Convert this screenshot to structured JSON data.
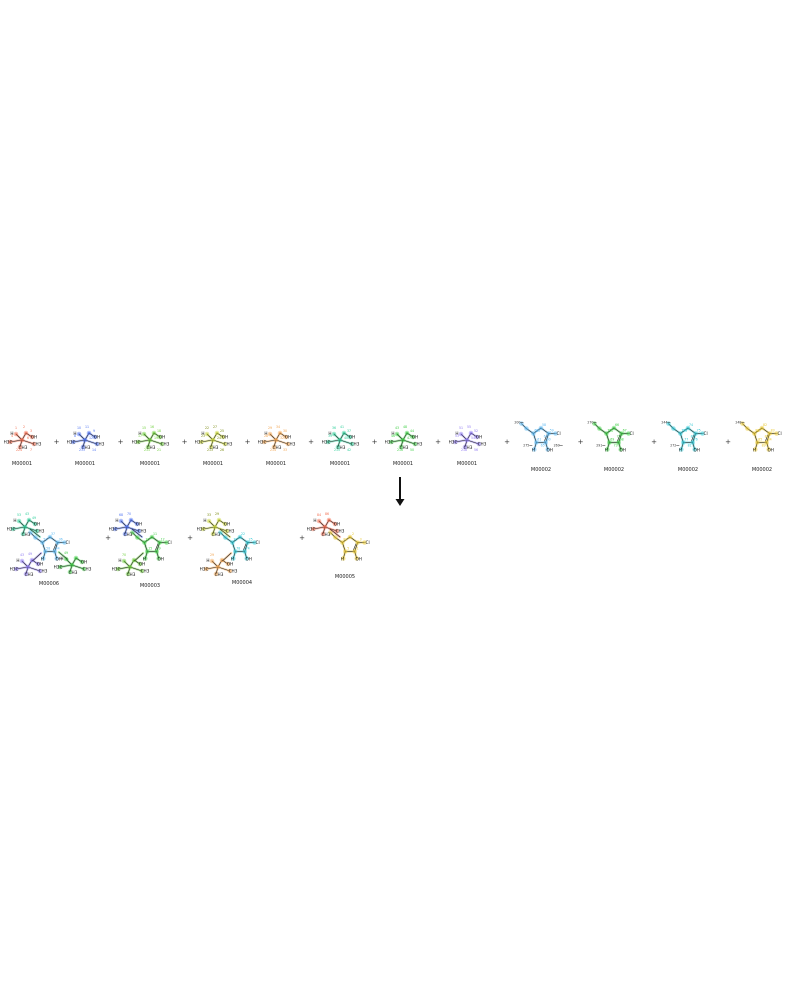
{
  "reactants": [
    {
      "label": "M00001",
      "color": "#f26d4f",
      "kind": "tbutanol",
      "nums": [
        "1",
        "2",
        "3",
        "4",
        "6",
        "224",
        "7"
      ]
    },
    {
      "label": "M00001",
      "color": "#4f74f2",
      "kind": "tbutanol",
      "nums": [
        "10",
        "11",
        "9",
        "8",
        "12",
        "233",
        "14"
      ]
    },
    {
      "label": "M00001",
      "color": "#6dcf3a",
      "kind": "tbutanol",
      "nums": [
        "15",
        "16",
        "18",
        "17",
        "19",
        "211",
        "21"
      ]
    },
    {
      "label": "M00001",
      "color": "#c8d43a",
      "kind": "tbutanol",
      "nums": [
        "22",
        "27",
        "25",
        "23",
        "24",
        "213",
        "26"
      ]
    },
    {
      "label": "M00001",
      "color": "#f2a44f",
      "kind": "tbutanol",
      "nums": [
        "29",
        "34",
        "30",
        "28",
        "32",
        "214",
        "33"
      ]
    },
    {
      "label": "M00001",
      "color": "#2ecf9a",
      "kind": "tbutanol",
      "nums": [
        "36",
        "41",
        "37",
        "39",
        "40",
        "215",
        "42"
      ]
    },
    {
      "label": "M00001",
      "color": "#3fcf45",
      "kind": "tbutanol",
      "nums": [
        "43",
        "48",
        "44",
        "46",
        "47",
        "216",
        "50"
      ]
    },
    {
      "label": "M00001",
      "color": "#8f7af2",
      "kind": "tbutanol",
      "nums": [
        "51",
        "55",
        "52",
        "53",
        "54",
        "218",
        "56"
      ]
    },
    {
      "label": "M00002",
      "color": "#5cb8f2",
      "kind": "ring",
      "nums": [
        "58",
        "59",
        "60",
        "61",
        "62",
        "63",
        "64",
        "65"
      ],
      "tags": [
        "200",
        "275",
        "269"
      ]
    },
    {
      "label": "M00002",
      "color": "#3fcf45",
      "kind": "ring",
      "nums": [
        "66",
        "67",
        "68",
        "69",
        "70",
        "71",
        "72",
        "73"
      ],
      "tags": [
        "270",
        "291"
      ]
    },
    {
      "label": "M00002",
      "color": "#2ec8d4",
      "kind": "ring",
      "nums": [
        "74",
        "75",
        "76",
        "77",
        "78",
        "79",
        "80",
        "81"
      ],
      "tags": [
        "244",
        "272"
      ]
    },
    {
      "label": "M00002",
      "color": "#e8c830",
      "kind": "ring",
      "nums": [
        "82",
        "83",
        "84",
        "85",
        "86",
        "87",
        "88",
        "89"
      ],
      "tags": [
        "248"
      ]
    }
  ],
  "products": [
    {
      "label": "M00006",
      "ring_color": "#5cb8f2",
      "groups": [
        "#2ecf9a",
        "#8f7af2",
        "#3fcf45"
      ],
      "nums": [
        "37",
        "36",
        "44",
        "58",
        "51",
        "53",
        "43",
        "49"
      ]
    },
    {
      "label": "M00003",
      "ring_color": "#3fcf45",
      "groups": [
        "#4f74f2",
        "#6dcf3a"
      ],
      "nums": [
        "11",
        "12",
        "9",
        "15",
        "18",
        "68",
        "70"
      ]
    },
    {
      "label": "M00004",
      "ring_color": "#2ec8d4",
      "groups": [
        "#c8d43a",
        "#f2a44f"
      ],
      "nums": [
        "22",
        "25",
        "74",
        "78",
        "30",
        "33",
        "29"
      ]
    },
    {
      "label": "M00005",
      "ring_color": "#e8c830",
      "groups": [
        "#f26d4f"
      ],
      "nums": [
        "2",
        "3",
        "1",
        "5",
        "82",
        "84",
        "86"
      ]
    }
  ],
  "symbols": {
    "plus": "+",
    "arrow": "reaction-arrow"
  },
  "atoms": {
    "methyl": "CH3",
    "methyl_left": "H3C",
    "hydroxyl": "OH",
    "ring_hetero": "N",
    "cl": "Cl",
    "s": "S"
  }
}
